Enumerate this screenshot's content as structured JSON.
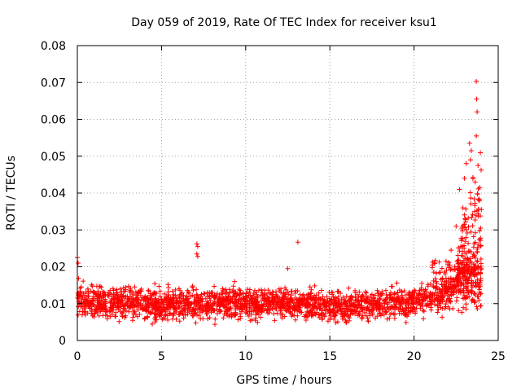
{
  "chart_data": {
    "type": "scatter",
    "title": "Day 059 of 2019, Rate Of TEC Index for receiver ksu1",
    "xlabel": "GPS time / hours",
    "ylabel": "ROTI / TECUs",
    "xlim": [
      0,
      25
    ],
    "ylim": [
      0,
      0.08
    ],
    "xticks": [
      "0",
      "5",
      "10",
      "15",
      "20",
      "25"
    ],
    "yticks": [
      "0",
      "0.01",
      "0.02",
      "0.03",
      "0.04",
      "0.05",
      "0.06",
      "0.07",
      "0.08"
    ],
    "grid": true,
    "marker": "plus",
    "color": "#ff0000",
    "series": [
      {
        "name": "ROTI",
        "baseline": [
          {
            "x": 0,
            "y": 0.0105
          },
          {
            "x": 2,
            "y": 0.0105
          },
          {
            "x": 5,
            "y": 0.0095
          },
          {
            "x": 8,
            "y": 0.0098
          },
          {
            "x": 12,
            "y": 0.0102
          },
          {
            "x": 15,
            "y": 0.0092
          },
          {
            "x": 18,
            "y": 0.0098
          },
          {
            "x": 20,
            "y": 0.0105
          },
          {
            "x": 21.5,
            "y": 0.012
          },
          {
            "x": 22.5,
            "y": 0.014
          },
          {
            "x": 23.5,
            "y": 0.016
          },
          {
            "x": 24,
            "y": 0.014
          }
        ],
        "outliers": [
          {
            "x": 0.0,
            "y": 0.0225
          },
          {
            "x": 0.05,
            "y": 0.021
          },
          {
            "x": 7.1,
            "y": 0.0262
          },
          {
            "x": 7.15,
            "y": 0.0255
          },
          {
            "x": 7.1,
            "y": 0.0235
          },
          {
            "x": 7.15,
            "y": 0.0228
          },
          {
            "x": 13.1,
            "y": 0.0267
          },
          {
            "x": 12.5,
            "y": 0.0195
          },
          {
            "x": 23.7,
            "y": 0.0703
          },
          {
            "x": 23.72,
            "y": 0.0655
          },
          {
            "x": 23.75,
            "y": 0.062
          },
          {
            "x": 23.7,
            "y": 0.0555
          },
          {
            "x": 23.3,
            "y": 0.0535
          },
          {
            "x": 23.4,
            "y": 0.0515
          },
          {
            "x": 23.35,
            "y": 0.049
          },
          {
            "x": 23.1,
            "y": 0.048
          },
          {
            "x": 23.0,
            "y": 0.044
          },
          {
            "x": 23.8,
            "y": 0.0475
          },
          {
            "x": 23.9,
            "y": 0.0415
          },
          {
            "x": 22.7,
            "y": 0.041
          },
          {
            "x": 22.9,
            "y": 0.036
          },
          {
            "x": 23.6,
            "y": 0.035
          },
          {
            "x": 22.5,
            "y": 0.031
          },
          {
            "x": 23.95,
            "y": 0.0305
          },
          {
            "x": 22.2,
            "y": 0.0245
          },
          {
            "x": 21.9,
            "y": 0.0215
          },
          {
            "x": 21.1,
            "y": 0.0205
          }
        ]
      }
    ]
  }
}
